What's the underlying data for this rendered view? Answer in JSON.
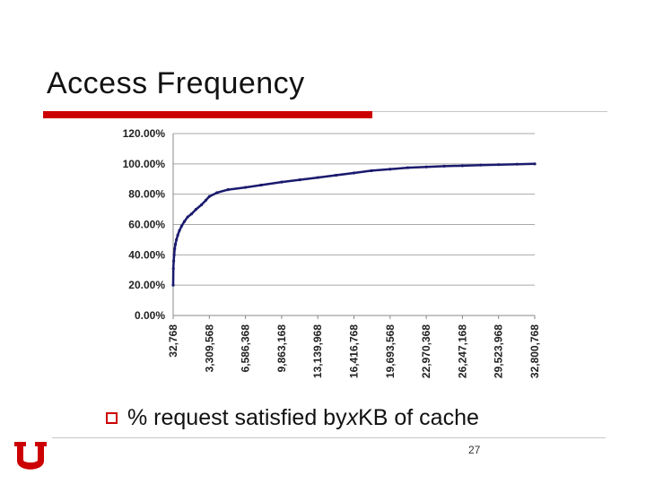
{
  "slide": {
    "title": "Access Frequency",
    "bullet_prefix": "% request satisfied by ",
    "bullet_variable": "x",
    "bullet_suffix": " KB of cache",
    "page_number": "27",
    "accent_color": "#cc0000",
    "logo_icon": "u-block-logo-icon"
  },
  "chart_data": {
    "type": "line",
    "title": "",
    "xlabel": "",
    "ylabel": "",
    "ylim": [
      0,
      120
    ],
    "y_ticks": [
      "0.00%",
      "20.00%",
      "40.00%",
      "60.00%",
      "80.00%",
      "100.00%",
      "120.00%"
    ],
    "x_ticks": [
      "32,768",
      "3,309,568",
      "6,586,368",
      "9,863,168",
      "13,139,968",
      "16,416,768",
      "19,693,568",
      "22,970,368",
      "26,247,168",
      "29,523,968",
      "32,800,768"
    ],
    "grid": true,
    "line_color": "#1a1a6e",
    "series": [
      {
        "values_x": [
          32768,
          50000,
          80000,
          120000,
          170000,
          240000,
          330000,
          450000,
          600000,
          800000,
          1050000,
          1350000,
          1700000,
          2100000,
          2600000,
          3000000,
          3309568,
          4000000,
          5000000,
          6586368,
          8000000,
          9863168,
          11500000,
          13139968,
          14800000,
          16416768,
          18000000,
          19693568,
          21300000,
          22970368,
          24600000,
          26247168,
          27900000,
          29523968,
          31200000,
          32800768
        ],
        "values_y": [
          20,
          31,
          36,
          40,
          44,
          47,
          50,
          53,
          56,
          59,
          62,
          65,
          67,
          70,
          73,
          76,
          78.5,
          81,
          83,
          84.5,
          86,
          88,
          89.5,
          91,
          92.5,
          94,
          95.5,
          96.5,
          97.5,
          98,
          98.5,
          98.8,
          99.2,
          99.5,
          99.8,
          100
        ]
      }
    ]
  }
}
